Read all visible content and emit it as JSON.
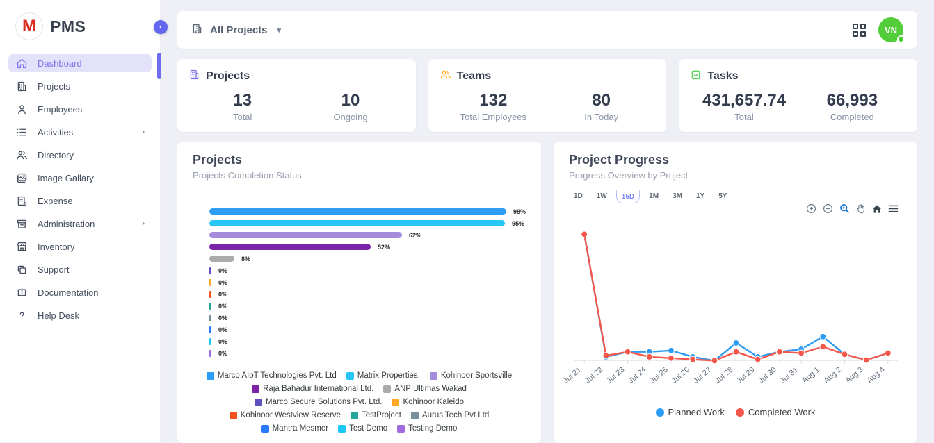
{
  "app": {
    "name": "PMS",
    "logo_letter": "M"
  },
  "sidebar": {
    "items": [
      {
        "label": "Dashboard",
        "icon": "home-icon",
        "active": true,
        "submenu": false
      },
      {
        "label": "Projects",
        "icon": "building-icon",
        "active": false,
        "submenu": false
      },
      {
        "label": "Employees",
        "icon": "person-icon",
        "active": false,
        "submenu": false
      },
      {
        "label": "Activities",
        "icon": "list-icon",
        "active": false,
        "submenu": true
      },
      {
        "label": "Directory",
        "icon": "people-icon",
        "active": false,
        "submenu": false
      },
      {
        "label": "Image Gallary",
        "icon": "image-icon",
        "active": false,
        "submenu": false
      },
      {
        "label": "Expense",
        "icon": "receipt-icon",
        "active": false,
        "submenu": false
      },
      {
        "label": "Administration",
        "icon": "archive-icon",
        "active": false,
        "submenu": true
      },
      {
        "label": "Inventory",
        "icon": "store-icon",
        "active": false,
        "submenu": false
      },
      {
        "label": "Support",
        "icon": "copy-icon",
        "active": false,
        "submenu": false
      },
      {
        "label": "Documentation",
        "icon": "book-icon",
        "active": false,
        "submenu": false
      },
      {
        "label": "Help Desk",
        "icon": "question-icon",
        "active": false,
        "submenu": false
      }
    ]
  },
  "topbar": {
    "project_filter": "All Projects",
    "avatar_initials": "VN",
    "avatar_color": "#53ce3a"
  },
  "stats": [
    {
      "title": "Projects",
      "icon": "building-icon",
      "icon_color": "#7c6fe8",
      "metrics": [
        {
          "value": "13",
          "label": "Total"
        },
        {
          "value": "10",
          "label": "Ongoing"
        }
      ]
    },
    {
      "title": "Teams",
      "icon": "people-icon",
      "icon_color": "#ffb020",
      "metrics": [
        {
          "value": "132",
          "label": "Total Employees"
        },
        {
          "value": "80",
          "label": "In Today"
        }
      ]
    },
    {
      "title": "Tasks",
      "icon": "clipboard-check-icon",
      "icon_color": "#5bd25b",
      "metrics": [
        {
          "value": "431,657.74",
          "label": "Total"
        },
        {
          "value": "66,993",
          "label": "Completed"
        }
      ]
    }
  ],
  "projects_card": {
    "title": "Projects",
    "subtitle": "Projects Completion Status"
  },
  "progress_card": {
    "title": "Project Progress",
    "subtitle": "Progress Overview by Project",
    "ranges": [
      "1D",
      "1W",
      "15D",
      "1M",
      "3M",
      "1Y",
      "5Y"
    ],
    "selected_range": "15D",
    "tools": [
      "zoom-in-icon",
      "zoom-out-icon",
      "selection-zoom-icon",
      "pan-icon",
      "home-icon",
      "menu-icon"
    ]
  },
  "chart_data": [
    {
      "type": "bar",
      "orientation": "horizontal",
      "title": "Projects Completion Status",
      "categories": [
        "Marco AIoT Technologies Pvt. Ltd",
        "Matrix Properties.",
        "Kohinoor Sportsville",
        "Raja Bahadur International Ltd.",
        "ANP Ultimas Wakad",
        "Marco Secure Solutions Pvt. Ltd.",
        "Kohinoor Kaleido",
        "Kohinoor Westview Reserve",
        "TestProject",
        "Aurus Tech Pvt Ltd",
        "Mantra Mesmer",
        "Test Demo",
        "Testing Demo"
      ],
      "values": [
        98,
        95,
        62,
        52,
        8,
        0,
        0,
        0,
        0,
        0,
        0,
        0,
        0
      ],
      "labels": [
        "98%",
        "95%",
        "62%",
        "52%",
        "8%",
        "0%",
        "0%",
        "0%",
        "0%",
        "0%",
        "0%",
        "0%",
        "0%"
      ],
      "colors": [
        "#2d9cf4",
        "#27c6f7",
        "#a58bdc",
        "#7b24a8",
        "#ababab",
        "#5e50c0",
        "#ffa726",
        "#f4511e",
        "#26a69a",
        "#78909c",
        "#2979ff",
        "#1ac6f2",
        "#a06be0"
      ],
      "xlim": [
        0,
        100
      ],
      "grid": false,
      "legend_position": "bottom"
    },
    {
      "type": "line",
      "title": "Progress Overview by Project",
      "x": [
        "Jul 21",
        "Jul 22",
        "Jul 23",
        "Jul 24",
        "Jul 25",
        "Jul 26",
        "Jul 27",
        "Jul 28",
        "Jul 29",
        "Jul 30",
        "Jul 31",
        "Aug 1",
        "Aug 2",
        "Aug 3",
        "Aug 4"
      ],
      "series": [
        {
          "name": "Planned Work",
          "color": "#2d9cf4",
          "values": [
            100,
            3,
            7,
            7,
            8,
            3,
            0,
            14,
            3,
            7,
            9,
            19,
            5,
            0.5,
            6
          ]
        },
        {
          "name": "Completed Work",
          "color": "#f4564a",
          "values": [
            100,
            4,
            7,
            3,
            2,
            1,
            0,
            7,
            1,
            7,
            6,
            11,
            5,
            0.5,
            6
          ]
        }
      ],
      "ylim": [
        0,
        105
      ],
      "grid": false,
      "legend_position": "bottom",
      "xtick_rotation": -40
    }
  ]
}
